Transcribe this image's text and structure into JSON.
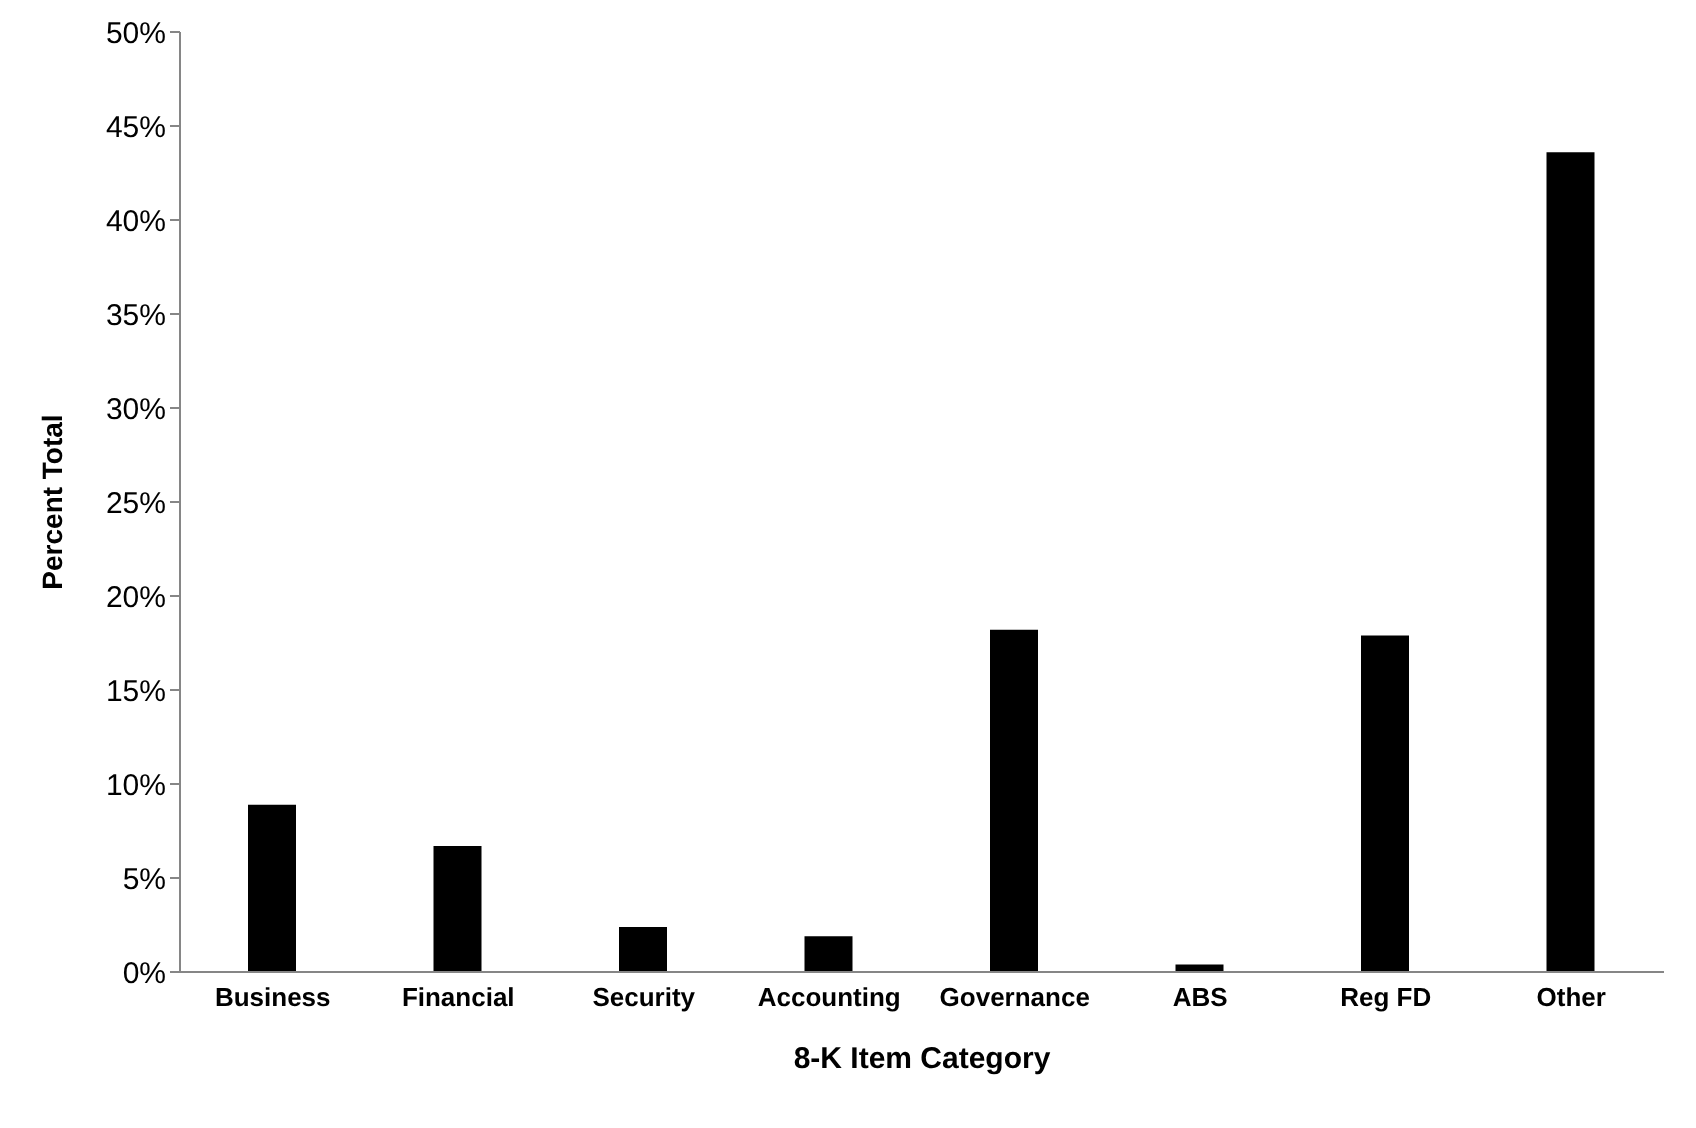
{
  "chart_data": {
    "type": "bar",
    "xlabel": "8-K Item Category",
    "ylabel": "Percent Total",
    "categories": [
      "Business",
      "Financial",
      "Security",
      "Accounting",
      "Governance",
      "ABS",
      "Reg FD",
      "Other"
    ],
    "values": [
      8.9,
      6.7,
      2.4,
      1.9,
      18.2,
      0.4,
      17.9,
      43.6
    ],
    "color": "#000000",
    "ylim": [
      0,
      50
    ],
    "yticks": [
      {
        "value": 0,
        "label": "0%"
      },
      {
        "value": 5,
        "label": "5%"
      },
      {
        "value": 10,
        "label": "10%"
      },
      {
        "value": 15,
        "label": "15%"
      },
      {
        "value": 20,
        "label": "20%"
      },
      {
        "value": 25,
        "label": "25%"
      },
      {
        "value": 30,
        "label": "30%"
      },
      {
        "value": 35,
        "label": "35%"
      },
      {
        "value": 40,
        "label": "40%"
      },
      {
        "value": 45,
        "label": "45%"
      },
      {
        "value": 50,
        "label": "50%"
      }
    ],
    "grid": false,
    "legend": false
  }
}
